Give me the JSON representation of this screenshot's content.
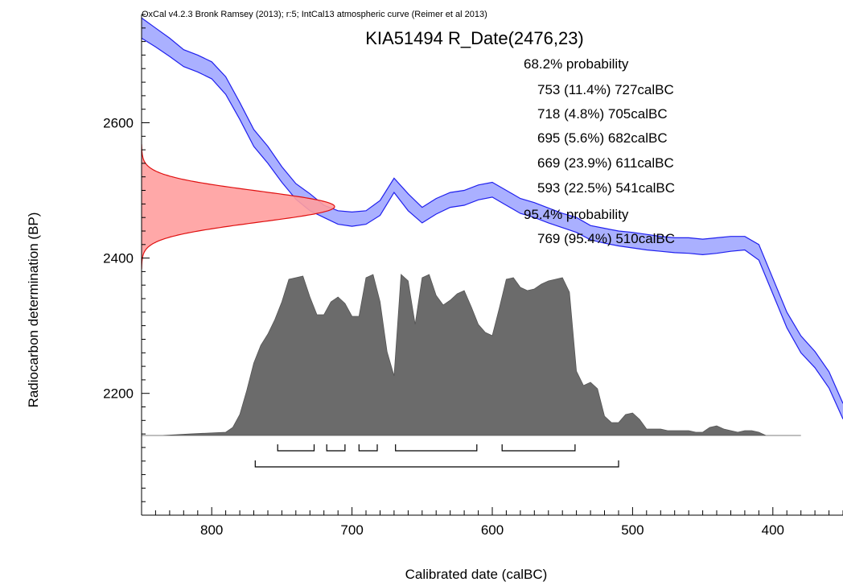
{
  "header": "OxCal v4.2.3 Bronk Ramsey (2013); r:5; IntCal13 atmospheric curve (Reimer et al 2013)",
  "title": "KIA51494 R_Date(2476,23)",
  "ranges": {
    "p68_label": "68.2% probability",
    "p68": [
      "753 (11.4%) 727calBC",
      "718 (4.8%) 705calBC",
      "695 (5.6%) 682calBC",
      "669 (23.9%) 611calBC",
      "593 (22.5%) 541calBC"
    ],
    "p95_label": "95.4% probability",
    "p95": [
      "769 (95.4%) 510calBC"
    ]
  },
  "colors": {
    "curve_fill": "#aab0ff",
    "curve_line": "#2020ee",
    "measurement_fill": "#ff9e9e",
    "measurement_line": "#e01010",
    "posterior_fill": "#6b6b6b"
  },
  "chart_data": {
    "type": "area",
    "xlabel": "Calibrated date (calBC)",
    "ylabel": "Radiocarbon determination (BP)",
    "xlim": [
      850,
      350
    ],
    "ylim": [
      2020,
      2760
    ],
    "x_ticks": [
      800,
      700,
      600,
      500,
      400
    ],
    "y_ticks": [
      2200,
      2400,
      2600
    ],
    "measurement": {
      "mean": 2476,
      "sd": 23
    },
    "calibration_curve": {
      "x": [
        850,
        840,
        830,
        820,
        810,
        800,
        790,
        780,
        770,
        760,
        750,
        740,
        730,
        720,
        710,
        700,
        690,
        680,
        670,
        660,
        650,
        640,
        630,
        620,
        610,
        600,
        590,
        580,
        570,
        560,
        550,
        540,
        530,
        520,
        510,
        500,
        490,
        480,
        470,
        460,
        450,
        440,
        430,
        420,
        410,
        400,
        390,
        380,
        370,
        360,
        350
      ],
      "upper": [
        2755,
        2740,
        2725,
        2708,
        2700,
        2690,
        2668,
        2630,
        2590,
        2565,
        2535,
        2510,
        2495,
        2478,
        2470,
        2468,
        2470,
        2485,
        2518,
        2495,
        2475,
        2488,
        2497,
        2500,
        2508,
        2512,
        2500,
        2488,
        2482,
        2474,
        2466,
        2460,
        2448,
        2444,
        2440,
        2438,
        2435,
        2432,
        2430,
        2430,
        2428,
        2430,
        2432,
        2432,
        2420,
        2370,
        2320,
        2285,
        2262,
        2232,
        2185
      ],
      "lower": [
        2725,
        2712,
        2698,
        2683,
        2675,
        2665,
        2642,
        2605,
        2565,
        2540,
        2512,
        2487,
        2470,
        2460,
        2450,
        2447,
        2450,
        2463,
        2497,
        2470,
        2452,
        2465,
        2475,
        2478,
        2486,
        2490,
        2478,
        2466,
        2460,
        2452,
        2445,
        2438,
        2427,
        2422,
        2418,
        2415,
        2412,
        2410,
        2408,
        2407,
        2405,
        2407,
        2410,
        2412,
        2397,
        2347,
        2297,
        2260,
        2238,
        2208,
        2162
      ]
    },
    "posterior": {
      "x": [
        855,
        835,
        815,
        790,
        785,
        780,
        775,
        770,
        765,
        760,
        755,
        750,
        745,
        740,
        735,
        730,
        725,
        720,
        715,
        710,
        705,
        700,
        695,
        690,
        685,
        680,
        675,
        670,
        665,
        660,
        655,
        650,
        645,
        640,
        635,
        630,
        625,
        620,
        615,
        610,
        605,
        600,
        595,
        590,
        585,
        580,
        575,
        570,
        565,
        560,
        555,
        550,
        545,
        540,
        535,
        530,
        525,
        520,
        515,
        510,
        505,
        500,
        495,
        490,
        485,
        480,
        475,
        470,
        465,
        460,
        455,
        450,
        445,
        440,
        435,
        430,
        425,
        420,
        415,
        410,
        405,
        395,
        380
      ],
      "density": [
        0,
        0,
        0.01,
        0.02,
        0.05,
        0.13,
        0.28,
        0.45,
        0.56,
        0.63,
        0.72,
        0.83,
        0.97,
        0.98,
        0.99,
        0.86,
        0.75,
        0.75,
        0.83,
        0.86,
        0.82,
        0.74,
        0.74,
        0.98,
        1.0,
        0.83,
        0.52,
        0.37,
        1.0,
        0.96,
        0.69,
        0.98,
        1.0,
        0.87,
        0.81,
        0.84,
        0.88,
        0.9,
        0.8,
        0.69,
        0.64,
        0.62,
        0.79,
        0.97,
        0.98,
        0.92,
        0.9,
        0.91,
        0.94,
        0.96,
        0.97,
        0.98,
        0.89,
        0.4,
        0.31,
        0.33,
        0.29,
        0.12,
        0.08,
        0.08,
        0.13,
        0.14,
        0.1,
        0.04,
        0.04,
        0.04,
        0.03,
        0.03,
        0.03,
        0.03,
        0.02,
        0.02,
        0.05,
        0.06,
        0.04,
        0.03,
        0.02,
        0.03,
        0.03,
        0.02,
        0.0,
        0,
        0
      ]
    },
    "range_brackets_68": [
      [
        753,
        727
      ],
      [
        718,
        705
      ],
      [
        695,
        682
      ],
      [
        669,
        611
      ],
      [
        593,
        541
      ]
    ],
    "range_brackets_95": [
      [
        769,
        510
      ]
    ]
  }
}
